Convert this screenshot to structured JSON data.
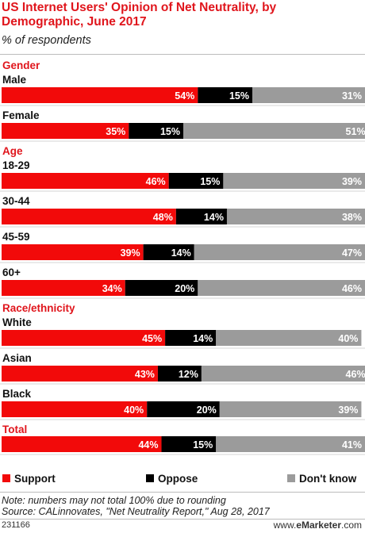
{
  "header": {
    "title": "US Internet Users' Opinion of Net Neutrality, by Demographic, June 2017",
    "subtitle": "% of respondents"
  },
  "colors": {
    "support": "#f20a0a",
    "oppose": "#000000",
    "dont_know": "#9b9b9b",
    "section": "#e0151c"
  },
  "legend": {
    "support": "Support",
    "oppose": "Oppose",
    "dont_know": "Don't know"
  },
  "notes": {
    "note": "Note: numbers may not total 100% due to rounding",
    "source": "Source: CALinnovates, \"Net Neutrality Report,\" Aug 28, 2017"
  },
  "footer": {
    "id": "231166",
    "brand_prefix": "www.",
    "brand_name": "eMarketer",
    "brand_suffix": ".com"
  },
  "chart_data": {
    "type": "bar",
    "orientation": "horizontal",
    "stacked": true,
    "unit": "%",
    "xlim": [
      0,
      100
    ],
    "series_names": [
      "Support",
      "Oppose",
      "Don't know"
    ],
    "rows": [
      {
        "section": "Gender",
        "label": "Male",
        "values": [
          54,
          15,
          31
        ]
      },
      {
        "label": "Female",
        "values": [
          35,
          15,
          51
        ]
      },
      {
        "section": "Age",
        "label": "18-29",
        "values": [
          46,
          15,
          39
        ]
      },
      {
        "label": "30-44",
        "values": [
          48,
          14,
          38
        ]
      },
      {
        "label": "45-59",
        "values": [
          39,
          14,
          47
        ]
      },
      {
        "label": "60+",
        "values": [
          34,
          20,
          46
        ]
      },
      {
        "section": "Race/ethnicity",
        "label": "White",
        "values": [
          45,
          14,
          40
        ]
      },
      {
        "label": "Asian",
        "values": [
          43,
          12,
          46
        ]
      },
      {
        "label": "Black",
        "values": [
          40,
          20,
          39
        ]
      },
      {
        "section": "Total",
        "label": "",
        "values": [
          44,
          15,
          41
        ]
      }
    ]
  }
}
